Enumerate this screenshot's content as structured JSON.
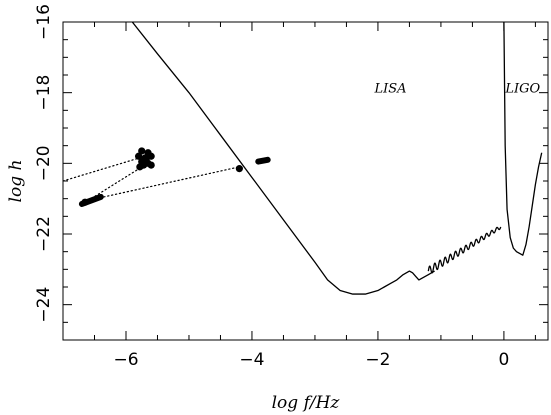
{
  "chart_data": {
    "type": "line",
    "title": "",
    "xlabel": "log f/Hz",
    "ylabel": "log h",
    "xlim": [
      -7,
      0.7
    ],
    "ylim": [
      -25,
      -16
    ],
    "x_ticks": [
      -6,
      -4,
      -2,
      0
    ],
    "x_tick_labels": [
      "−6",
      "−4",
      "−2",
      "0"
    ],
    "y_ticks": [
      -24,
      -22,
      -20,
      -18,
      -16
    ],
    "y_tick_labels": [
      "−24",
      "−22",
      "−20",
      "−18",
      "−16"
    ],
    "grid": false,
    "legend": "none",
    "annotations": [
      {
        "text": "LISA",
        "x": -1.8,
        "y": -17.9
      },
      {
        "text": "LIGO",
        "x": 0.3,
        "y": -17.9
      }
    ],
    "series": [
      {
        "kind": "lisa_sensitivity",
        "style": "solid",
        "x": [
          -5.9,
          -5.5,
          -5.0,
          -4.5,
          -4.0,
          -3.5,
          -3.0,
          -2.8,
          -2.6,
          -2.4,
          -2.2,
          -2.0,
          -1.9,
          -1.8,
          -1.7,
          -1.6,
          -1.5,
          -1.45,
          -1.4,
          -1.35,
          -1.3,
          -1.2,
          -1.1
        ],
        "y": [
          -16.0,
          -16.9,
          -18.0,
          -19.2,
          -20.4,
          -21.6,
          -22.8,
          -23.3,
          -23.6,
          -23.7,
          -23.7,
          -23.6,
          -23.5,
          -23.4,
          -23.3,
          -23.15,
          -23.05,
          -23.1,
          -23.2,
          -23.3,
          -23.25,
          -23.15,
          -23.05
        ]
      },
      {
        "kind": "lisa_wiggles",
        "style": "solid",
        "x_range": [
          -1.2,
          -0.05
        ],
        "y_start": -23.05,
        "y_end": -21.8,
        "cycles": 14,
        "amplitude": 0.12
      },
      {
        "kind": "ligo_sensitivity",
        "style": "solid",
        "x": [
          0.0,
          0.02,
          0.05,
          0.1,
          0.15,
          0.2,
          0.25,
          0.3,
          0.35,
          0.4,
          0.45,
          0.5,
          0.55,
          0.6
        ],
        "y": [
          -16.0,
          -19.5,
          -21.3,
          -22.1,
          -22.4,
          -22.5,
          -22.55,
          -22.6,
          -22.3,
          -21.8,
          -21.2,
          -20.6,
          -20.1,
          -19.7
        ]
      },
      {
        "kind": "dotted_track",
        "style": "dotted",
        "x": [
          -7.0,
          -5.7
        ],
        "y": [
          -20.5,
          -19.8
        ]
      },
      {
        "kind": "dotted_track",
        "style": "dotted",
        "x": [
          -6.6,
          -5.7
        ],
        "y": [
          -21.05,
          -20.05
        ]
      },
      {
        "kind": "dotted_track",
        "style": "dotted",
        "x": [
          -6.6,
          -4.2
        ],
        "y": [
          -21.05,
          -20.1
        ]
      },
      {
        "kind": "thick_segment",
        "style": "solid",
        "x": [
          -6.7,
          -6.4
        ],
        "y": [
          -21.15,
          -20.95
        ]
      },
      {
        "kind": "thick_segment",
        "style": "solid",
        "x": [
          -3.9,
          -3.75
        ],
        "y": [
          -19.95,
          -19.9
        ]
      }
    ],
    "points": [
      {
        "x": -5.75,
        "y": -19.65
      },
      {
        "x": -5.65,
        "y": -19.7
      },
      {
        "x": -5.8,
        "y": -19.8
      },
      {
        "x": -5.7,
        "y": -19.85
      },
      {
        "x": -5.6,
        "y": -19.8
      },
      {
        "x": -5.75,
        "y": -19.95
      },
      {
        "x": -5.65,
        "y": -20.0
      },
      {
        "x": -5.6,
        "y": -20.05
      },
      {
        "x": -5.78,
        "y": -20.1
      },
      {
        "x": -5.68,
        "y": -19.9
      },
      {
        "x": -5.72,
        "y": -20.05
      },
      {
        "x": -4.2,
        "y": -20.15
      },
      {
        "x": -6.65,
        "y": -21.1
      }
    ]
  }
}
